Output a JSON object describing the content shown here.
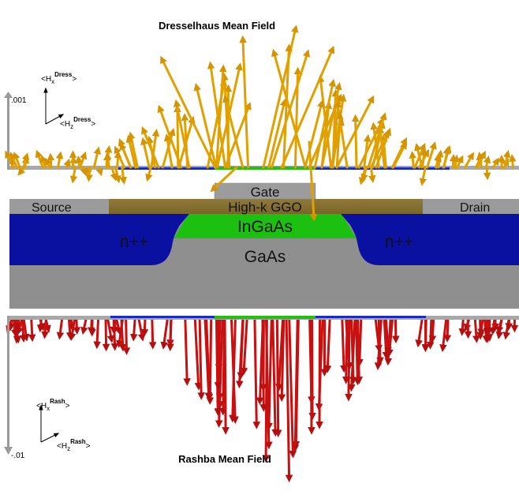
{
  "top_title": "Dresselhaus Mean Field",
  "bottom_title": "Rashba Mean Field",
  "top_scale": ".001",
  "bottom_scale": "-.01",
  "top_axes": {
    "x_main": "<H",
    "x_sub": "x",
    "x_sup": "Dress",
    "x_end": ">",
    "z_main": "<H",
    "z_sub": "z",
    "z_sup": "Dress",
    "z_end": ">"
  },
  "bottom_axes": {
    "x_main": "<H",
    "x_sub": "x",
    "x_sup": "Rash",
    "x_end": ">",
    "z_main": "<H",
    "z_sub": "z",
    "z_sup": "Rash",
    "z_end": ">"
  },
  "device": {
    "source": "Source",
    "drain": "Drain",
    "gate": "Gate",
    "dielectric": "High-k GGO",
    "channel": "InGaAs",
    "doped_left": "n++",
    "doped_right": "n++",
    "substrate": "GaAs"
  },
  "colors": {
    "dresselhaus_arrow": "#e0a000",
    "rashba_arrow": "#c81010",
    "doped_region": "#0a10a0",
    "channel": "#1bc010",
    "substrate": "#8f8f8f",
    "dielectric": "#8a7434",
    "contact": "#9b9b9b"
  }
}
